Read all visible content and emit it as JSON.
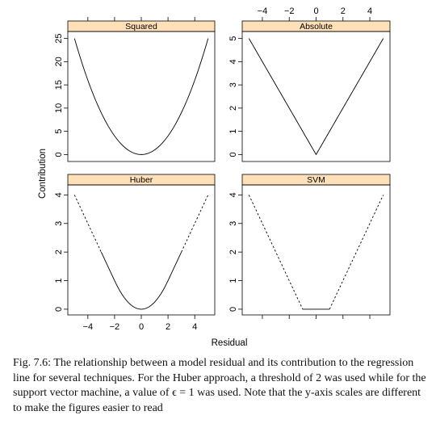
{
  "chart_data": {
    "type": "line",
    "layout": "2x2 lattice panels",
    "xlabel": "Residual",
    "ylabel": "Contribution",
    "xlim": [
      -5.5,
      5.5
    ],
    "x_ticks": [
      -4,
      -2,
      0,
      2,
      4
    ],
    "x_tick_labels": [
      "−4",
      "−2",
      "0",
      "2",
      "4"
    ],
    "strip_color": "#ffe0b8",
    "dashed_segments": "Huber: |x| > 3; SVM: 1 < |x| ≤ 5",
    "panels": [
      {
        "name": "Squared",
        "position": "top-left",
        "formula": "x^2",
        "ylim": [
          -1.5,
          26.5
        ],
        "y_ticks": [
          0,
          5,
          10,
          15,
          20,
          25
        ],
        "y_tick_labels": [
          "0",
          "5",
          "10",
          "15",
          "20",
          "25"
        ],
        "series": [
          {
            "x_range": [
              -5,
              5
            ],
            "style": "solid"
          }
        ]
      },
      {
        "name": "Absolute",
        "position": "top-right",
        "formula": "|x|",
        "ylim": [
          -0.3,
          5.3
        ],
        "y_ticks": [
          0,
          1,
          2,
          3,
          4,
          5
        ],
        "y_tick_labels": [
          "0",
          "1",
          "2",
          "3",
          "4",
          "5"
        ],
        "series": [
          {
            "x_range": [
              -5,
              5
            ],
            "style": "solid"
          }
        ]
      },
      {
        "name": "Huber",
        "position": "bottom-left",
        "formula": "x^2/4 for |x|<=2, |x|-1 otherwise",
        "ylim": [
          -0.2,
          4.35
        ],
        "y_ticks": [
          0,
          1,
          2,
          3,
          4
        ],
        "y_tick_labels": [
          "0",
          "1",
          "2",
          "3",
          "4"
        ],
        "series": [
          {
            "x_range": [
              -3,
              3
            ],
            "style": "solid"
          },
          {
            "x_range": [
              -5,
              -3
            ],
            "style": "dashed"
          },
          {
            "x_range": [
              3,
              5
            ],
            "style": "dashed"
          }
        ]
      },
      {
        "name": "SVM",
        "position": "bottom-right",
        "formula": "max(0, |x|-1)",
        "ylim": [
          -0.2,
          4.35
        ],
        "y_ticks": [
          0,
          1,
          2,
          3,
          4
        ],
        "y_tick_labels": [
          "0",
          "1",
          "2",
          "3",
          "4"
        ],
        "series": [
          {
            "x_range": [
              -1,
              1
            ],
            "style": "solid"
          },
          {
            "x_range": [
              -5,
              -1
            ],
            "style": "dashed"
          },
          {
            "x_range": [
              1,
              5
            ],
            "style": "dashed"
          }
        ]
      }
    ]
  },
  "caption": "Fig. 7.6: The relationship between a model residual and its contribution to the regression line for several techniques. For the Huber approach, a threshold of 2 was used while for the support vector machine, a value of ϵ = 1 was used. Note that the y-axis scales are different to make the figures easier to read"
}
